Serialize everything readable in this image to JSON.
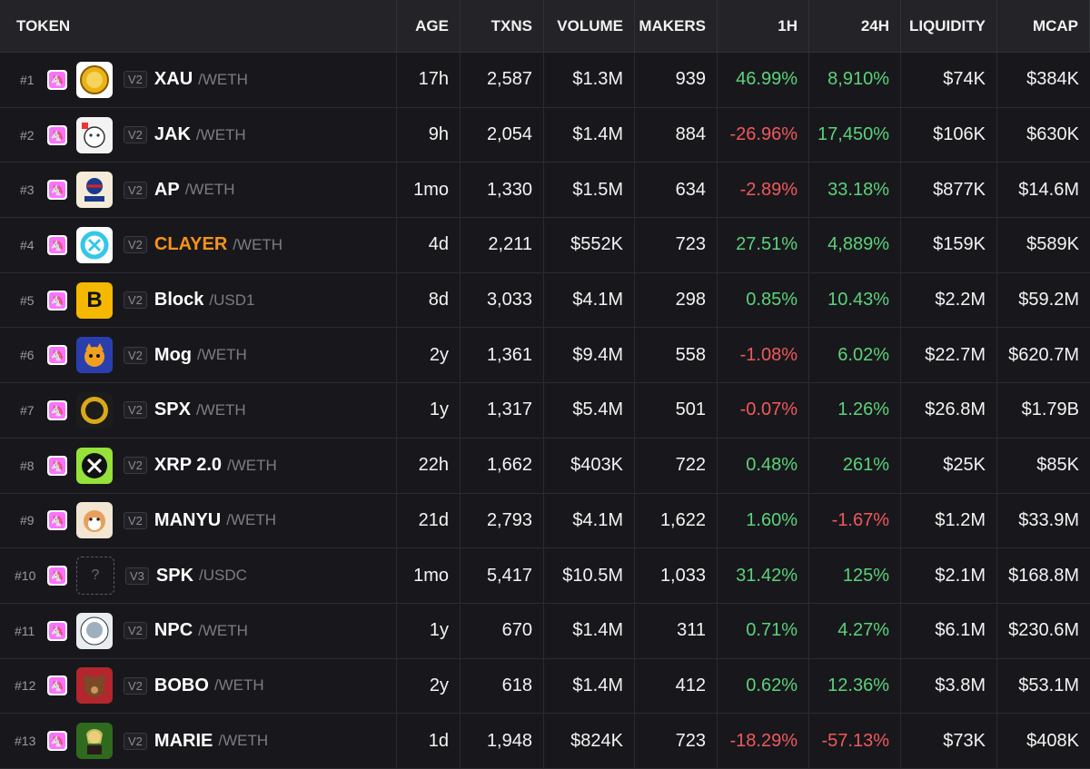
{
  "columns": {
    "token": "TOKEN",
    "age": "AGE",
    "txns": "TXNS",
    "volume": "VOLUME",
    "makers": "MAKERS",
    "h1": "1H",
    "h24": "24H",
    "liquidity": "LIQUIDITY",
    "mcap": "MCAP"
  },
  "colors": {
    "positive": "#5bd27a",
    "negative": "#f0585c",
    "highlight": "#f7931a",
    "dex": "#fc72ff"
  },
  "rows": [
    {
      "rank": "#1",
      "ver": "V2",
      "symbol": "XAU",
      "pair": "/WETH",
      "age": "17h",
      "txns": "2,587",
      "volume": "$1.3M",
      "makers": "939",
      "h1": "46.99%",
      "h24": "8,910%",
      "liquidity": "$74K",
      "mcap": "$384K",
      "logo_icon": "gold-coin-icon"
    },
    {
      "rank": "#2",
      "ver": "V2",
      "symbol": "JAK",
      "pair": "/WETH",
      "age": "9h",
      "txns": "2,054",
      "volume": "$1.4M",
      "makers": "884",
      "h1": "-26.96%",
      "h24": "17,450%",
      "liquidity": "$106K",
      "mcap": "$630K",
      "logo_icon": "cartoon-face-icon"
    },
    {
      "rank": "#3",
      "ver": "V2",
      "symbol": "AP",
      "pair": "/WETH",
      "age": "1mo",
      "txns": "1,330",
      "volume": "$1.5M",
      "makers": "634",
      "h1": "-2.89%",
      "h24": "33.18%",
      "liquidity": "$877K",
      "mcap": "$14.6M",
      "logo_icon": "america-party-icon"
    },
    {
      "rank": "#4",
      "ver": "V2",
      "symbol": "CLAYER",
      "pair": "/WETH",
      "age": "4d",
      "txns": "2,211",
      "volume": "$552K",
      "makers": "723",
      "h1": "27.51%",
      "h24": "4,889%",
      "liquidity": "$159K",
      "mcap": "$589K",
      "logo_icon": "cyan-ring-icon"
    },
    {
      "rank": "#5",
      "ver": "V2",
      "symbol": "Block",
      "pair": "/USD1",
      "age": "8d",
      "txns": "3,033",
      "volume": "$4.1M",
      "makers": "298",
      "h1": "0.85%",
      "h24": "10.43%",
      "liquidity": "$2.2M",
      "mcap": "$59.2M",
      "logo_icon": "letter-b-icon"
    },
    {
      "rank": "#6",
      "ver": "V2",
      "symbol": "Mog",
      "pair": "/WETH",
      "age": "2y",
      "txns": "1,361",
      "volume": "$9.4M",
      "makers": "558",
      "h1": "-1.08%",
      "h24": "6.02%",
      "liquidity": "$22.7M",
      "mcap": "$620.7M",
      "logo_icon": "cat-icon"
    },
    {
      "rank": "#7",
      "ver": "V2",
      "symbol": "SPX",
      "pair": "/WETH",
      "age": "1y",
      "txns": "1,317",
      "volume": "$5.4M",
      "makers": "501",
      "h1": "-0.07%",
      "h24": "1.26%",
      "liquidity": "$26.8M",
      "mcap": "$1.79B",
      "logo_icon": "spx-coin-icon"
    },
    {
      "rank": "#8",
      "ver": "V2",
      "symbol": "XRP 2.0",
      "pair": "/WETH",
      "age": "22h",
      "txns": "1,662",
      "volume": "$403K",
      "makers": "722",
      "h1": "0.48%",
      "h24": "261%",
      "liquidity": "$25K",
      "mcap": "$85K",
      "logo_icon": "x-logo-icon"
    },
    {
      "rank": "#9",
      "ver": "V2",
      "symbol": "MANYU",
      "pair": "/WETH",
      "age": "21d",
      "txns": "2,793",
      "volume": "$4.1M",
      "makers": "1,622",
      "h1": "1.60%",
      "h24": "-1.67%",
      "liquidity": "$1.2M",
      "mcap": "$33.9M",
      "logo_icon": "dog-icon"
    },
    {
      "rank": "#10",
      "ver": "V3",
      "symbol": "SPK",
      "pair": "/USDC",
      "age": "1mo",
      "txns": "5,417",
      "volume": "$10.5M",
      "makers": "1,033",
      "h1": "31.42%",
      "h24": "125%",
      "liquidity": "$2.1M",
      "mcap": "$168.8M",
      "logo_icon": "unknown-token-icon",
      "logo_text": "?"
    },
    {
      "rank": "#11",
      "ver": "V2",
      "symbol": "NPC",
      "pair": "/WETH",
      "age": "1y",
      "txns": "670",
      "volume": "$1.4M",
      "makers": "311",
      "h1": "0.71%",
      "h24": "4.27%",
      "liquidity": "$6.1M",
      "mcap": "$230.6M",
      "logo_icon": "npc-face-icon"
    },
    {
      "rank": "#12",
      "ver": "V2",
      "symbol": "BOBO",
      "pair": "/WETH",
      "age": "2y",
      "txns": "618",
      "volume": "$1.4M",
      "makers": "412",
      "h1": "0.62%",
      "h24": "12.36%",
      "liquidity": "$3.8M",
      "mcap": "$53.1M",
      "logo_icon": "bear-icon"
    },
    {
      "rank": "#13",
      "ver": "V2",
      "symbol": "MARIE",
      "pair": "/WETH",
      "age": "1d",
      "txns": "1,948",
      "volume": "$824K",
      "makers": "723",
      "h1": "-18.29%",
      "h24": "-57.13%",
      "liquidity": "$73K",
      "mcap": "$408K",
      "logo_icon": "portrait-icon"
    }
  ]
}
